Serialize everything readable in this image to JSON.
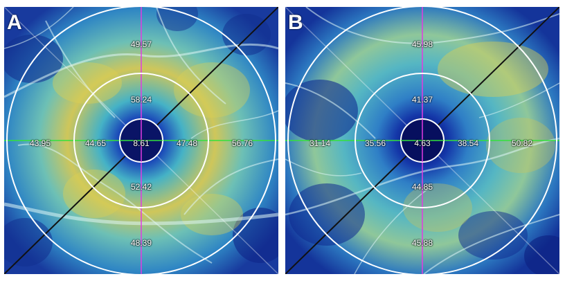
{
  "panels": [
    {
      "letter": "A",
      "values": {
        "outer_top": "49.57",
        "inner_top": "58.24",
        "outer_left": "43.95",
        "inner_left": "44.65",
        "center": "8.61",
        "inner_right": "47.48",
        "outer_right": "56.76",
        "inner_bottom": "52.42",
        "outer_bottom": "48.39"
      }
    },
    {
      "letter": "B",
      "values": {
        "outer_top": "45.98",
        "inner_top": "41.37",
        "outer_left": "31.14",
        "inner_left": "35.56",
        "center": "4.63",
        "inner_right": "38.54",
        "outer_right": "50.82",
        "inner_bottom": "44.85",
        "outer_bottom": "45.88"
      }
    }
  ],
  "colors": {
    "deep_blue": "#0b1a7a",
    "blue": "#1f4fc0",
    "cyan": "#3aa6c8",
    "yellow": "#d8cc55",
    "crosshair_magenta": "#e23be2",
    "crosshair_green": "#33e23b",
    "rings": "#ffffff",
    "diagonals": "#111111"
  }
}
